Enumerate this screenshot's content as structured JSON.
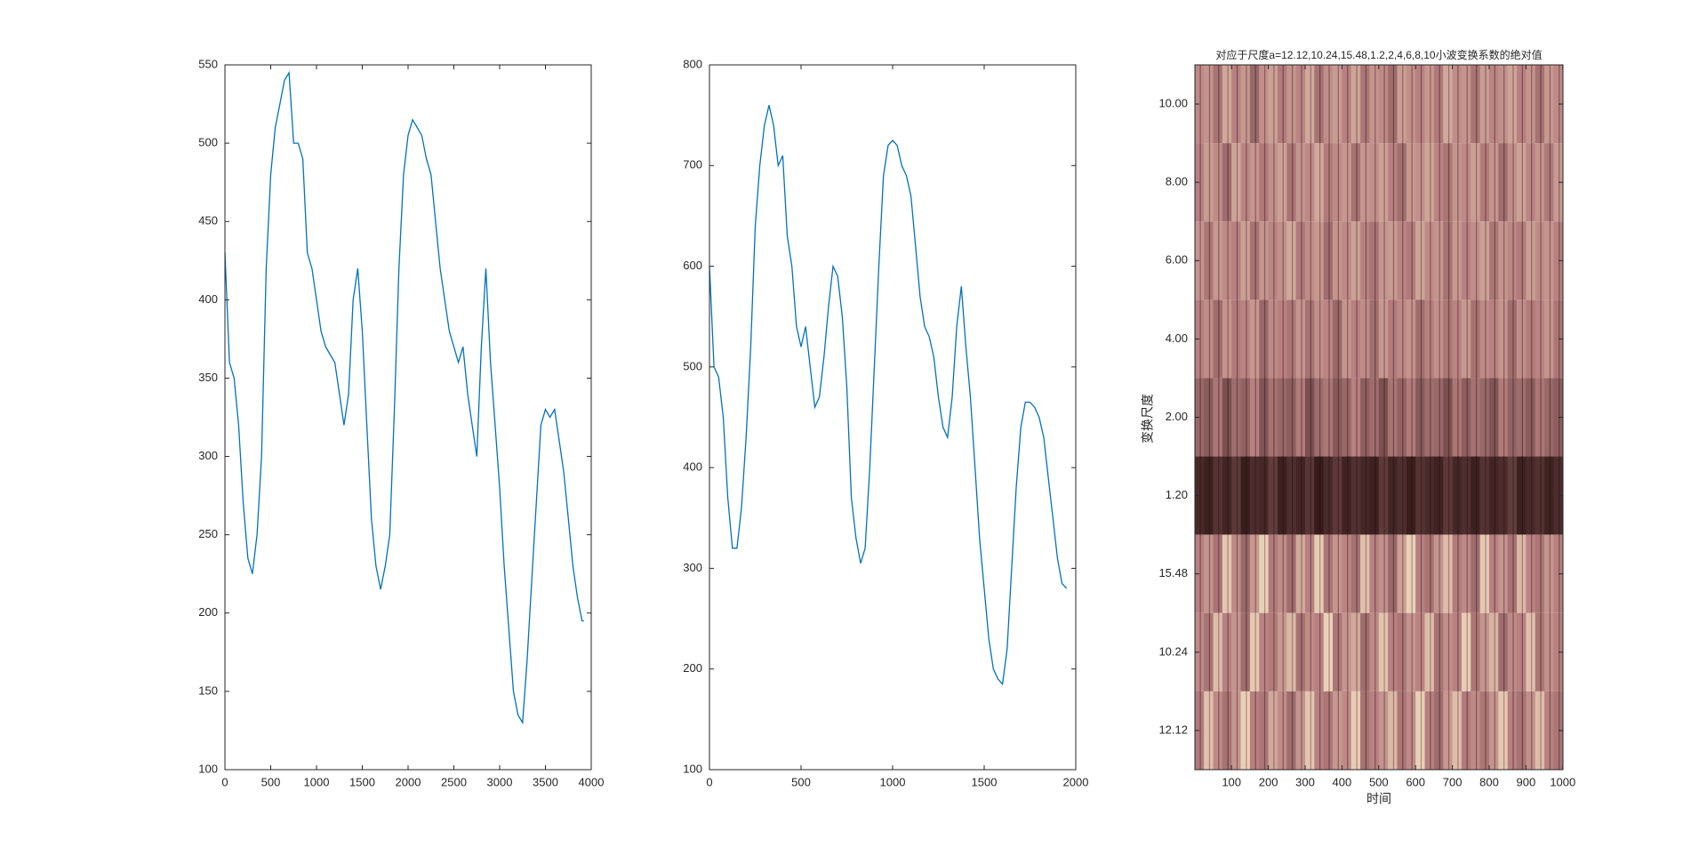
{
  "chart_data": [
    {
      "type": "line",
      "color": "#0072bd",
      "x": [
        0,
        50,
        100,
        150,
        200,
        250,
        300,
        350,
        400,
        450,
        500,
        550,
        600,
        650,
        700,
        750,
        800,
        850,
        900,
        950,
        1000,
        1050,
        1100,
        1150,
        1200,
        1250,
        1300,
        1350,
        1400,
        1450,
        1500,
        1550,
        1600,
        1650,
        1700,
        1750,
        1800,
        1850,
        1900,
        1950,
        2000,
        2050,
        2100,
        2150,
        2200,
        2250,
        2300,
        2350,
        2400,
        2450,
        2500,
        2550,
        2600,
        2650,
        2700,
        2750,
        2800,
        2850,
        2900,
        2950,
        3000,
        3050,
        3100,
        3150,
        3200,
        3250,
        3300,
        3350,
        3400,
        3450,
        3500,
        3550,
        3600,
        3650,
        3700,
        3750,
        3800,
        3850,
        3900,
        3920
      ],
      "y": [
        430,
        360,
        350,
        320,
        270,
        235,
        225,
        250,
        300,
        420,
        480,
        510,
        525,
        540,
        545,
        500,
        500,
        490,
        430,
        420,
        400,
        380,
        370,
        365,
        360,
        340,
        320,
        340,
        400,
        420,
        380,
        320,
        260,
        230,
        215,
        230,
        250,
        330,
        420,
        480,
        505,
        515,
        510,
        505,
        490,
        480,
        450,
        420,
        400,
        380,
        370,
        360,
        370,
        340,
        320,
        300,
        370,
        420,
        360,
        320,
        280,
        230,
        190,
        150,
        135,
        130,
        170,
        220,
        270,
        320,
        330,
        325,
        330,
        310,
        290,
        260,
        230,
        210,
        195,
        195
      ],
      "xlim": [
        0,
        4000
      ],
      "xticks": [
        0,
        500,
        1000,
        1500,
        2000,
        2500,
        3000,
        3500,
        4000
      ],
      "ylim": [
        100,
        550
      ],
      "yticks": [
        100,
        150,
        200,
        250,
        300,
        350,
        400,
        450,
        500,
        550
      ]
    },
    {
      "type": "line",
      "color": "#0072bd",
      "x": [
        0,
        25,
        50,
        75,
        100,
        125,
        150,
        175,
        200,
        225,
        250,
        275,
        300,
        325,
        350,
        375,
        400,
        425,
        450,
        475,
        500,
        525,
        550,
        575,
        600,
        625,
        650,
        675,
        700,
        725,
        750,
        775,
        800,
        825,
        850,
        875,
        900,
        925,
        950,
        975,
        1000,
        1025,
        1050,
        1075,
        1100,
        1125,
        1150,
        1175,
        1200,
        1225,
        1250,
        1275,
        1300,
        1325,
        1350,
        1375,
        1400,
        1425,
        1450,
        1475,
        1500,
        1525,
        1550,
        1575,
        1600,
        1625,
        1650,
        1675,
        1700,
        1725,
        1750,
        1775,
        1800,
        1825,
        1850,
        1875,
        1900,
        1925,
        1950
      ],
      "y": [
        600,
        500,
        490,
        450,
        370,
        320,
        320,
        360,
        430,
        520,
        640,
        700,
        740,
        760,
        740,
        700,
        710,
        630,
        600,
        540,
        520,
        540,
        500,
        460,
        470,
        510,
        560,
        600,
        590,
        550,
        480,
        370,
        330,
        305,
        320,
        400,
        500,
        600,
        690,
        720,
        725,
        720,
        700,
        690,
        670,
        620,
        570,
        540,
        530,
        510,
        470,
        440,
        430,
        470,
        540,
        580,
        520,
        470,
        400,
        330,
        280,
        230,
        200,
        190,
        185,
        220,
        300,
        380,
        440,
        465,
        465,
        460,
        450,
        430,
        390,
        350,
        310,
        285,
        280
      ],
      "xlim": [
        0,
        2000
      ],
      "xticks": [
        0,
        500,
        1000,
        1500,
        2000
      ],
      "ylim": [
        100,
        800
      ],
      "yticks": [
        100,
        200,
        300,
        400,
        500,
        600,
        700,
        800
      ]
    },
    {
      "type": "heatmap",
      "title": "对应于尺度a=12.12,10.24,15.48,1.2,2,4,6,8,10小波变换系数的绝对值",
      "xlabel": "时间",
      "ylabel": "变换尺度",
      "colormap": [
        "#1e0808",
        "#b88080",
        "#f2e6c4"
      ],
      "x": [
        12.5,
        37.5,
        62.5,
        87.5,
        112.5,
        137.5,
        162.5,
        187.5,
        212.5,
        237.5,
        262.5,
        287.5,
        312.5,
        337.5,
        362.5,
        387.5,
        412.5,
        437.5,
        462.5,
        487.5,
        512.5,
        537.5,
        562.5,
        587.5,
        612.5,
        637.5,
        662.5,
        687.5,
        712.5,
        737.5,
        762.5,
        787.5,
        812.5,
        837.5,
        862.5,
        887.5,
        912.5,
        937.5,
        962.5,
        987.5
      ],
      "y": [
        1,
        2,
        3,
        4,
        5,
        6,
        7,
        8,
        9
      ],
      "z": [
        [
          0.55,
          0.6,
          0.45,
          0.7,
          0.5,
          0.62,
          0.4,
          0.58,
          0.66,
          0.48,
          0.6,
          0.52,
          0.7,
          0.44,
          0.57,
          0.63,
          0.5,
          0.68,
          0.46,
          0.6,
          0.55,
          0.42,
          0.65,
          0.58,
          0.5,
          0.62,
          0.47,
          0.7,
          0.56,
          0.6,
          0.45,
          0.64,
          0.52,
          0.58,
          0.68,
          0.5,
          0.6,
          0.44,
          0.62,
          0.55
        ],
        [
          0.5,
          0.64,
          0.56,
          0.42,
          0.68,
          0.52,
          0.6,
          0.47,
          0.58,
          0.66,
          0.45,
          0.6,
          0.54,
          0.7,
          0.48,
          0.55,
          0.62,
          0.44,
          0.6,
          0.57,
          0.66,
          0.5,
          0.43,
          0.62,
          0.58,
          0.68,
          0.52,
          0.46,
          0.6,
          0.55,
          0.65,
          0.48,
          0.6,
          0.42,
          0.57,
          0.66,
          0.52,
          0.6,
          0.47,
          0.63
        ],
        [
          0.6,
          0.46,
          0.62,
          0.55,
          0.5,
          0.66,
          0.44,
          0.6,
          0.52,
          0.58,
          0.7,
          0.47,
          0.56,
          0.62,
          0.42,
          0.6,
          0.54,
          0.66,
          0.5,
          0.45,
          0.6,
          0.63,
          0.52,
          0.48,
          0.68,
          0.55,
          0.6,
          0.44,
          0.62,
          0.5,
          0.57,
          0.66,
          0.46,
          0.6,
          0.53,
          0.48,
          0.65,
          0.55,
          0.6,
          0.5
        ],
        [
          0.5,
          0.56,
          0.42,
          0.6,
          0.48,
          0.52,
          0.62,
          0.4,
          0.55,
          0.5,
          0.46,
          0.6,
          0.44,
          0.58,
          0.52,
          0.4,
          0.6,
          0.5,
          0.56,
          0.43,
          0.62,
          0.48,
          0.54,
          0.6,
          0.42,
          0.5,
          0.58,
          0.46,
          0.52,
          0.62,
          0.44,
          0.55,
          0.5,
          0.6,
          0.42,
          0.57,
          0.48,
          0.52,
          0.6,
          0.46
        ],
        [
          0.4,
          0.35,
          0.46,
          0.3,
          0.42,
          0.38,
          0.5,
          0.32,
          0.44,
          0.4,
          0.36,
          0.48,
          0.3,
          0.42,
          0.46,
          0.34,
          0.4,
          0.5,
          0.36,
          0.42,
          0.3,
          0.45,
          0.38,
          0.48,
          0.34,
          0.42,
          0.4,
          0.3,
          0.46,
          0.36,
          0.44,
          0.4,
          0.32,
          0.48,
          0.38,
          0.42,
          0.35,
          0.46,
          0.4,
          0.36
        ],
        [
          0.14,
          0.1,
          0.18,
          0.12,
          0.2,
          0.09,
          0.15,
          0.13,
          0.22,
          0.1,
          0.16,
          0.12,
          0.19,
          0.08,
          0.14,
          0.2,
          0.11,
          0.17,
          0.13,
          0.1,
          0.21,
          0.12,
          0.16,
          0.09,
          0.18,
          0.14,
          0.11,
          0.2,
          0.13,
          0.16,
          0.1,
          0.18,
          0.12,
          0.15,
          0.22,
          0.1,
          0.14,
          0.17,
          0.11,
          0.15
        ],
        [
          0.5,
          0.6,
          0.45,
          0.85,
          0.55,
          0.4,
          0.62,
          0.9,
          0.48,
          0.56,
          0.42,
          0.7,
          0.5,
          0.88,
          0.46,
          0.6,
          0.52,
          0.44,
          0.82,
          0.5,
          0.58,
          0.4,
          0.66,
          0.9,
          0.5,
          0.45,
          0.6,
          0.8,
          0.48,
          0.55,
          0.42,
          0.86,
          0.5,
          0.6,
          0.44,
          0.78,
          0.52,
          0.46,
          0.6,
          0.5
        ],
        [
          0.55,
          0.45,
          0.8,
          0.5,
          0.6,
          0.42,
          0.86,
          0.52,
          0.48,
          0.62,
          0.78,
          0.44,
          0.56,
          0.5,
          0.9,
          0.46,
          0.6,
          0.7,
          0.42,
          0.55,
          0.84,
          0.5,
          0.46,
          0.6,
          0.52,
          0.8,
          0.44,
          0.58,
          0.5,
          0.88,
          0.46,
          0.6,
          0.75,
          0.42,
          0.55,
          0.5,
          0.82,
          0.46,
          0.58,
          0.5
        ],
        [
          0.48,
          0.82,
          0.55,
          0.44,
          0.6,
          0.9,
          0.5,
          0.46,
          0.7,
          0.56,
          0.42,
          0.6,
          0.85,
          0.5,
          0.46,
          0.62,
          0.55,
          0.88,
          0.44,
          0.5,
          0.6,
          0.78,
          0.46,
          0.55,
          0.9,
          0.5,
          0.42,
          0.62,
          0.8,
          0.48,
          0.55,
          0.46,
          0.6,
          0.86,
          0.5,
          0.44,
          0.58,
          0.8,
          0.5,
          0.46
        ]
      ],
      "xlim": [
        0.5,
        1000.5
      ],
      "xticks": [
        100,
        200,
        300,
        400,
        500,
        600,
        700,
        800,
        900,
        1000
      ],
      "ylim": [
        9.5,
        0.5
      ],
      "yticks": [
        {
          "value": 1,
          "label": "10.00"
        },
        {
          "value": 2,
          "label": "8.00"
        },
        {
          "value": 3,
          "label": "6.00"
        },
        {
          "value": 4,
          "label": "4.00"
        },
        {
          "value": 5,
          "label": "2.00"
        },
        {
          "value": 6,
          "label": "1.20"
        },
        {
          "value": 7,
          "label": "15.48"
        },
        {
          "value": 8,
          "label": "10.24"
        },
        {
          "value": 9,
          "label": "12.12"
        }
      ]
    }
  ]
}
